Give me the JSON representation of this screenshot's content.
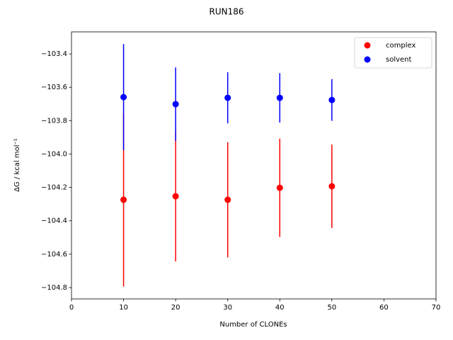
{
  "chart_data": {
    "type": "errorbar-scatter",
    "title": "RUN186",
    "x_label": "Number of CLONEs",
    "y_label": "ΔG / kcal mol⁻¹",
    "x": [
      10,
      20,
      30,
      40,
      50
    ],
    "series": [
      {
        "name": "complex",
        "color": "#ff0000",
        "values": [
          -104.274,
          -104.253,
          -104.274,
          -104.202,
          -104.193
        ],
        "errors": [
          0.52,
          0.39,
          0.345,
          0.295,
          0.25
        ]
      },
      {
        "name": "solvent",
        "color": "#0000ff",
        "values": [
          -103.659,
          -103.701,
          -103.663,
          -103.663,
          -103.676
        ],
        "errors": [
          0.318,
          0.22,
          0.153,
          0.148,
          0.125
        ]
      }
    ],
    "xlim": [
      0,
      70
    ],
    "xticks": [
      0,
      10,
      20,
      30,
      40,
      50,
      60,
      70
    ],
    "ylim": [
      -104.868,
      -103.268
    ],
    "yticks": [
      {
        "value": -104.8,
        "label": "−104.8"
      },
      {
        "value": -104.6,
        "label": "−104.6"
      },
      {
        "value": -104.4,
        "label": "−104.4"
      },
      {
        "value": -104.2,
        "label": "−104.2"
      },
      {
        "value": -104.0,
        "label": "−104.0"
      },
      {
        "value": -103.8,
        "label": "−103.8"
      },
      {
        "value": -103.6,
        "label": "−103.6"
      },
      {
        "value": -103.4,
        "label": "−103.4"
      }
    ],
    "legend": "upper-right"
  }
}
